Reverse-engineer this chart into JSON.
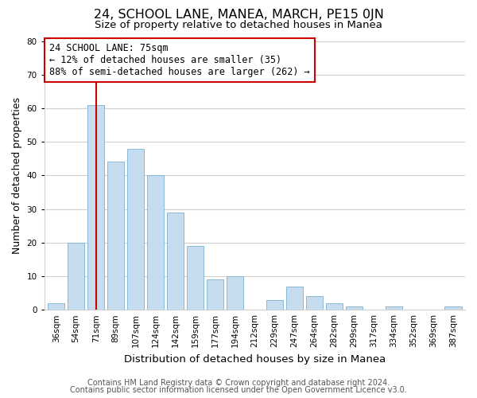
{
  "title": "24, SCHOOL LANE, MANEA, MARCH, PE15 0JN",
  "subtitle": "Size of property relative to detached houses in Manea",
  "xlabel": "Distribution of detached houses by size in Manea",
  "ylabel": "Number of detached properties",
  "categories": [
    "36sqm",
    "54sqm",
    "71sqm",
    "89sqm",
    "107sqm",
    "124sqm",
    "142sqm",
    "159sqm",
    "177sqm",
    "194sqm",
    "212sqm",
    "229sqm",
    "247sqm",
    "264sqm",
    "282sqm",
    "299sqm",
    "317sqm",
    "334sqm",
    "352sqm",
    "369sqm",
    "387sqm"
  ],
  "values": [
    2,
    20,
    61,
    44,
    48,
    40,
    29,
    19,
    9,
    10,
    0,
    3,
    7,
    4,
    2,
    1,
    0,
    1,
    0,
    0,
    1
  ],
  "bar_color": "#c5ddef",
  "bar_edge_color": "#8ab8d4",
  "vline_x_index": 2,
  "vline_color": "#cc0000",
  "annotation_line1": "24 SCHOOL LANE: 75sqm",
  "annotation_line2": "← 12% of detached houses are smaller (35)",
  "annotation_line3": "88% of semi-detached houses are larger (262) →",
  "annotation_box_color": "#ffffff",
  "annotation_box_edge": "#cc0000",
  "ylim": [
    0,
    80
  ],
  "yticks": [
    0,
    10,
    20,
    30,
    40,
    50,
    60,
    70,
    80
  ],
  "grid_color": "#d0d0d0",
  "footer1": "Contains HM Land Registry data © Crown copyright and database right 2024.",
  "footer2": "Contains public sector information licensed under the Open Government Licence v3.0.",
  "title_fontsize": 11.5,
  "subtitle_fontsize": 9.5,
  "xlabel_fontsize": 9.5,
  "ylabel_fontsize": 9,
  "tick_fontsize": 7.5,
  "annotation_fontsize": 8.5,
  "footer_fontsize": 7
}
